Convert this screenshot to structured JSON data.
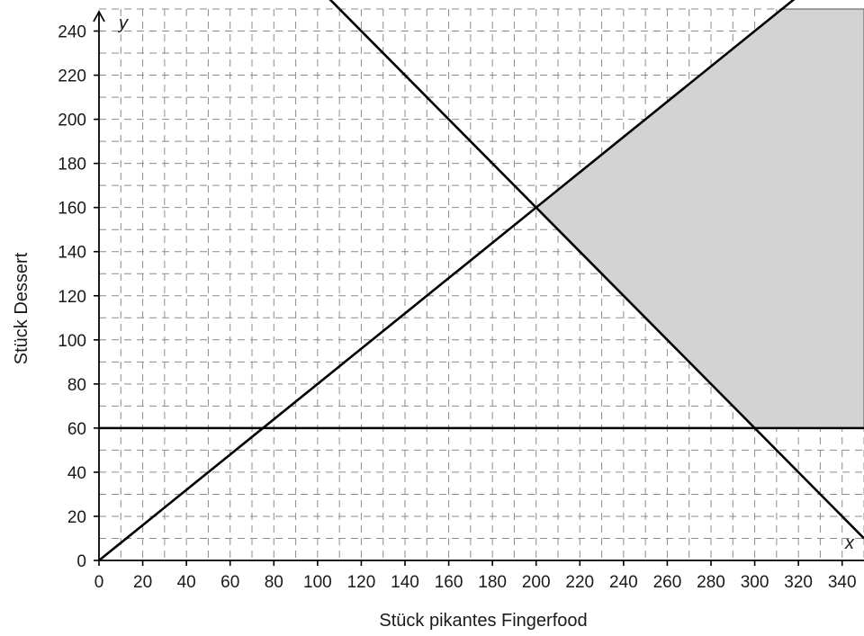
{
  "chart_data": {
    "type": "line",
    "xlabel": "Stück pikantes Fingerfood",
    "ylabel": "Stück Dessert",
    "x_axis_var": "x",
    "y_axis_var": "y",
    "xlim": [
      0,
      350
    ],
    "ylim": [
      0,
      250
    ],
    "x_ticks": [
      0,
      20,
      40,
      60,
      80,
      100,
      120,
      140,
      160,
      180,
      200,
      220,
      240,
      260,
      280,
      300,
      320,
      340
    ],
    "y_ticks": [
      0,
      20,
      40,
      60,
      80,
      100,
      120,
      140,
      160,
      180,
      200,
      220,
      240
    ],
    "grid": true,
    "series": [
      {
        "points": [
          [
            0,
            0
          ],
          [
            350,
            280
          ]
        ]
      },
      {
        "points": [
          [
            0,
            60
          ],
          [
            350,
            60
          ]
        ]
      },
      {
        "points": [
          [
            0,
            360
          ],
          [
            350,
            10
          ]
        ]
      }
    ],
    "shaded_region": {
      "color": "#d3d3d3",
      "vertices": [
        [
          200,
          160
        ],
        [
          312.5,
          250
        ],
        [
          350,
          250
        ],
        [
          350,
          60
        ],
        [
          300,
          60
        ]
      ]
    }
  }
}
